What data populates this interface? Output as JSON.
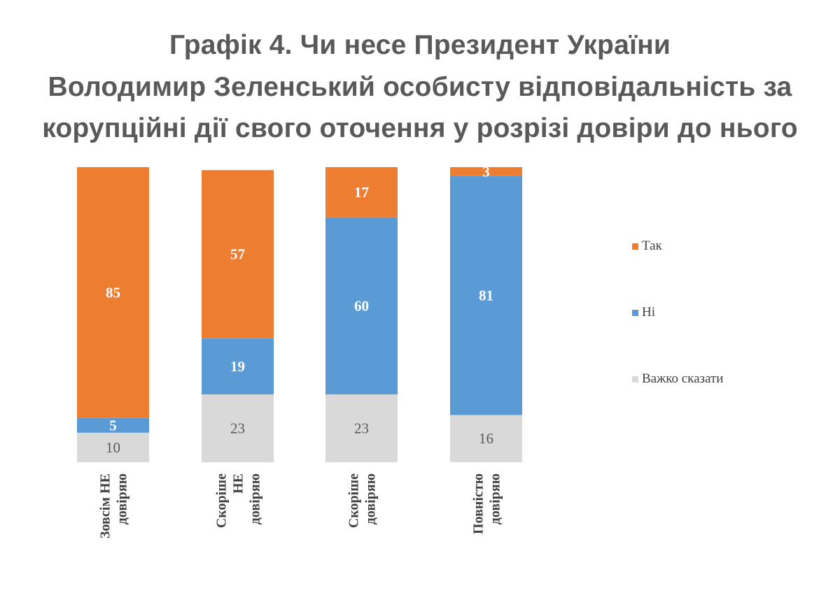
{
  "title_lines": [
    "Графік 4. Чи несе Президент України",
    "Володимир Зеленський особисту відповідальність за",
    "корупційні дії свого оточення у розрізі довіри до нього"
  ],
  "chart_data": {
    "type": "bar",
    "stacked": true,
    "orientation": "vertical",
    "stack_order_bottom_to_top": [
      "Важко сказати",
      "Ні",
      "Так"
    ],
    "categories": [
      [
        "Зовсім НЕ",
        "довіряю"
      ],
      [
        "Скоріше",
        "НЕ",
        "довіряю"
      ],
      [
        "Скоріше",
        "довіряю"
      ],
      [
        "Повністю",
        "довіряю"
      ]
    ],
    "series": [
      {
        "name": "Так",
        "color": "#ED7D31",
        "values": [
          85,
          57,
          17,
          3
        ]
      },
      {
        "name": "Ні",
        "color": "#5B9BD5",
        "values": [
          5,
          19,
          60,
          81
        ]
      },
      {
        "name": "Важко сказати",
        "color": "#D9D9D9",
        "values": [
          10,
          23,
          23,
          16
        ]
      }
    ],
    "ylim": [
      0,
      100
    ],
    "data_labels": true,
    "grid": false,
    "legend_position": "right"
  }
}
